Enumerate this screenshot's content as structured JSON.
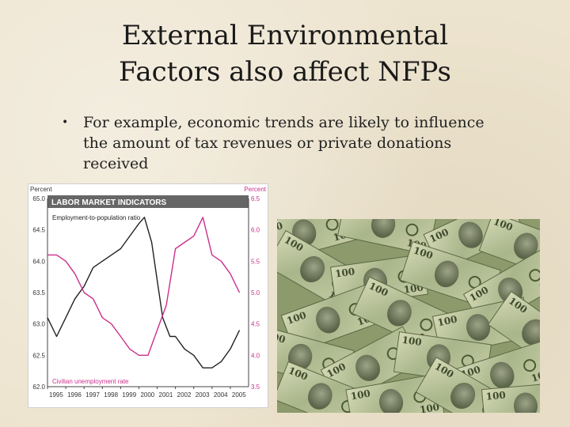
{
  "slide": {
    "title_line1": "External Environmental",
    "title_line2": "Factors also affect NFPs",
    "bullet": "For example, economic trends are likely to influence the amount of tax revenues or private donations received"
  },
  "bill_label": "100",
  "chart_data": {
    "type": "line",
    "title": "LABOR MARKET INDICATORS",
    "left_axis_label": "Percent",
    "right_axis_label": "Percent",
    "x_ticks": [
      "1995",
      "1996",
      "1997",
      "1998",
      "1999",
      "2000",
      "2001",
      "2002",
      "2003",
      "2004",
      "2005"
    ],
    "left_ticks": [
      "65.0",
      "64.5",
      "64.0",
      "63.5",
      "63.0",
      "62.5",
      "62.0"
    ],
    "right_ticks": [
      "6.5",
      "6.0",
      "5.5",
      "5.0",
      "4.5",
      "4.0",
      "3.5"
    ],
    "left_ylim": [
      62.0,
      65.0
    ],
    "right_ylim": [
      3.5,
      6.5
    ],
    "colors": {
      "employment": "#222222",
      "unemployment": "#cc2f8c",
      "title_band": "#666666"
    },
    "series": [
      {
        "name": "Employment-to-population ratio",
        "axis": "left",
        "x": [
          1995.0,
          1995.5,
          1996.0,
          1996.5,
          1997.0,
          1997.5,
          1998.0,
          1998.5,
          1999.0,
          1999.5,
          2000.0,
          2000.3,
          2000.7,
          2001.0,
          2001.3,
          2001.7,
          2002.0,
          2002.5,
          2003.0,
          2003.5,
          2004.0,
          2004.5,
          2005.0,
          2005.5
        ],
        "values": [
          63.1,
          62.8,
          63.1,
          63.4,
          63.6,
          63.9,
          64.0,
          64.1,
          64.2,
          64.4,
          64.6,
          64.7,
          64.3,
          63.7,
          63.1,
          62.8,
          62.8,
          62.6,
          62.5,
          62.3,
          62.3,
          62.4,
          62.6,
          62.9
        ]
      },
      {
        "name": "Civilian unemployment rate",
        "axis": "right",
        "x": [
          1995.0,
          1995.5,
          1996.0,
          1996.5,
          1997.0,
          1997.5,
          1998.0,
          1998.5,
          1999.0,
          1999.5,
          2000.0,
          2000.5,
          2001.0,
          2001.5,
          2002.0,
          2002.5,
          2003.0,
          2003.5,
          2004.0,
          2004.5,
          2005.0,
          2005.5
        ],
        "values": [
          5.6,
          5.6,
          5.5,
          5.3,
          5.0,
          4.9,
          4.6,
          4.5,
          4.3,
          4.1,
          4.0,
          4.0,
          4.4,
          4.8,
          5.7,
          5.8,
          5.9,
          6.2,
          5.6,
          5.5,
          5.3,
          5.0
        ]
      }
    ]
  }
}
